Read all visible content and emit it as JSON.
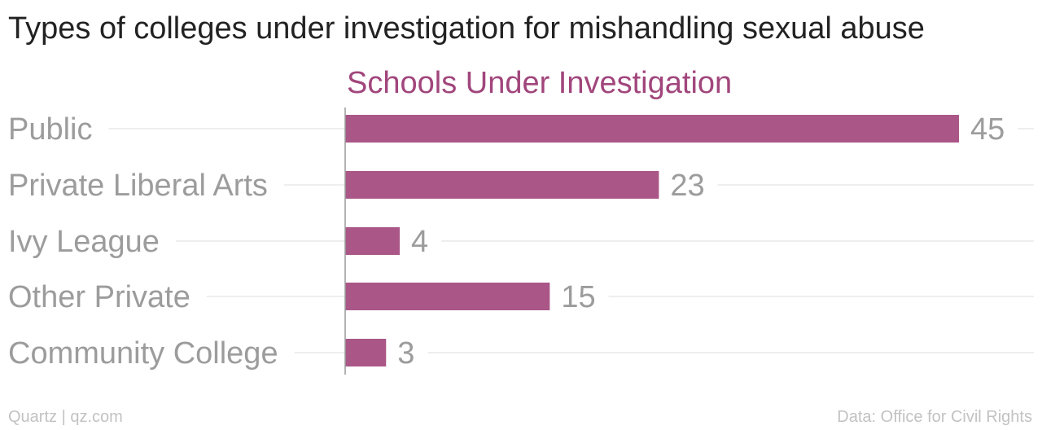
{
  "title": "Types of colleges under investigation for mishandling sexual abuse",
  "footer": {
    "source_left": "Quartz | qz.com",
    "source_right": "Data: Office for Civil Rights"
  },
  "colors": {
    "bar": "#aa5787",
    "series_title": "#a1467c",
    "category_label": "#9c9c9c",
    "value_label": "#9c9c9c",
    "gridline": "#e8e8e8",
    "axis": "#9a9a9a"
  },
  "chart_data": {
    "type": "bar",
    "orientation": "horizontal",
    "categories": [
      "Public",
      "Private Liberal Arts",
      "Ivy League",
      "Other Private",
      "Community College"
    ],
    "series": [
      {
        "name": "Schools Under Investigation",
        "values": [
          45,
          23,
          4,
          15,
          3
        ]
      }
    ],
    "xlim": [
      0,
      45
    ],
    "grid": true,
    "legend": "none",
    "data_labels": true
  }
}
